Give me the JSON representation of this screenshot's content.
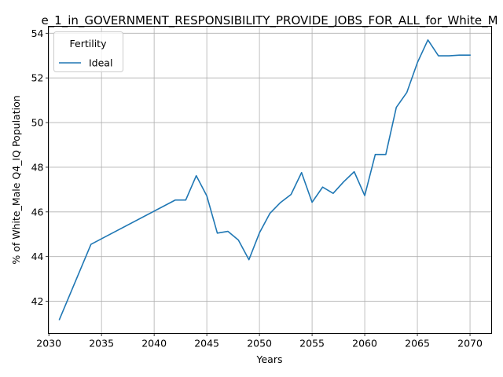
{
  "chart_data": {
    "type": "line",
    "title": "e_1_in_GOVERNMENT_RESPONSIBILITY_PROVIDE_JOBS_FOR_ALL_for_White_M",
    "xlabel": "Years",
    "ylabel": "% of White_Male Q4_IQ Population",
    "xlim": [
      2029.95,
      2072.05
    ],
    "ylim": [
      40.56,
      54.31
    ],
    "xticks": [
      2030,
      2035,
      2040,
      2045,
      2050,
      2055,
      2060,
      2065,
      2070
    ],
    "yticks": [
      42,
      44,
      46,
      48,
      50,
      52,
      54
    ],
    "grid": true,
    "legend": {
      "title": "Fertility",
      "placement": "upper-left"
    },
    "series": [
      {
        "name": "Ideal",
        "color": "#1f77b4",
        "x": [
          2031,
          2034,
          2042,
          2043,
          2044,
          2045,
          2046,
          2047,
          2048,
          2049,
          2050,
          2051,
          2052,
          2053,
          2054,
          2055,
          2056,
          2057,
          2058,
          2059,
          2060,
          2061,
          2062,
          2063,
          2064,
          2065,
          2066,
          2067,
          2068,
          2069,
          2070
        ],
        "values": [
          41.18,
          44.55,
          46.53,
          46.53,
          47.62,
          46.72,
          45.05,
          45.13,
          44.74,
          43.86,
          45.06,
          45.94,
          46.42,
          46.78,
          47.76,
          46.43,
          47.11,
          46.83,
          47.35,
          47.8,
          46.73,
          48.57,
          48.57,
          50.68,
          51.35,
          52.68,
          53.7,
          52.99,
          52.99,
          53.02,
          53.02
        ]
      }
    ]
  }
}
